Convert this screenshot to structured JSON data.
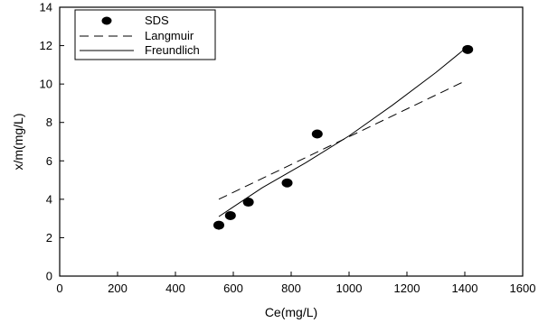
{
  "chart_data": {
    "type": "scatter",
    "xlabel": "Ce(mg/L)",
    "ylabel": "x/m(mg/L)",
    "xlim": [
      0,
      1600
    ],
    "ylim": [
      0,
      14
    ],
    "x_ticks": [
      "0",
      "200",
      "400",
      "600",
      "800",
      "1000",
      "1200",
      "1400",
      "1600"
    ],
    "y_ticks": [
      "0",
      "2",
      "4",
      "6",
      "8",
      "10",
      "12",
      "14"
    ],
    "grid": false,
    "legend_position": "top-left",
    "legend": [
      "SDS",
      "Langmuir",
      "Freundlich"
    ],
    "series": [
      {
        "name": "SDS",
        "kind": "points",
        "x": [
          550,
          590,
          652,
          786,
          890,
          1410
        ],
        "y": [
          2.65,
          3.15,
          3.85,
          4.85,
          7.4,
          11.8
        ]
      },
      {
        "name": "Langmuir",
        "kind": "dashed-line",
        "x": [
          550,
          1400
        ],
        "y": [
          4.0,
          10.15
        ]
      },
      {
        "name": "Freundlich",
        "kind": "solid-line",
        "x": [
          550,
          700,
          850,
          1000,
          1150,
          1300,
          1410
        ],
        "y": [
          3.1,
          4.6,
          5.9,
          7.3,
          8.9,
          10.6,
          11.95
        ]
      }
    ]
  }
}
